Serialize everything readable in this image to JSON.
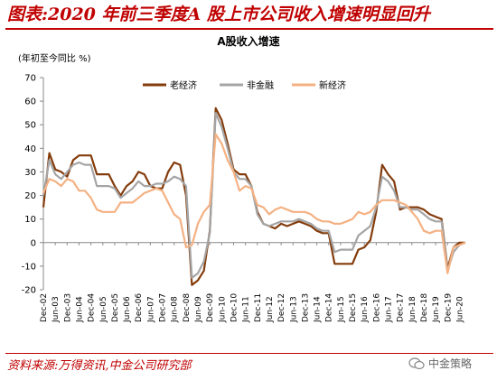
{
  "figure": {
    "title": "图表:2020 年前三季度A 股上市公司收入增速明显回升",
    "source": "资料来源:万得资讯,中金公司研究部",
    "watermark": "中金策略"
  },
  "chart_data": {
    "type": "line",
    "title": "A股收入增速",
    "ylabel": "(年初至今同比 %)",
    "ylim": [
      -20,
      70
    ],
    "yticks": [
      -20,
      -10,
      0,
      10,
      20,
      30,
      40,
      50,
      60,
      70
    ],
    "grid": false,
    "legend_position": "top-center",
    "x_tick_labels": [
      "Dec-02",
      "Jun-03",
      "Dec-03",
      "Jun-04",
      "Dec-04",
      "Jun-05",
      "Dec-05",
      "Jun-06",
      "Dec-06",
      "Jun-07",
      "Dec-07",
      "Jun-08",
      "Dec-08",
      "Jun-09",
      "Dec-09",
      "Jun-10",
      "Dec-10",
      "Jun-11",
      "Dec-11",
      "Jun-12",
      "Dec-12",
      "Jun-13",
      "Dec-13",
      "Jun-14",
      "Dec-14",
      "Jun-15",
      "Dec-15",
      "Jun-16",
      "Dec-16",
      "Jun-17",
      "Dec-17",
      "Jun-18",
      "Dec-18",
      "Jun-19",
      "Dec-19",
      "Jun-20"
    ],
    "x": [
      "Dec-02",
      "Mar-03",
      "Jun-03",
      "Sep-03",
      "Dec-03",
      "Mar-04",
      "Jun-04",
      "Sep-04",
      "Dec-04",
      "Mar-05",
      "Jun-05",
      "Sep-05",
      "Dec-05",
      "Mar-06",
      "Jun-06",
      "Sep-06",
      "Dec-06",
      "Mar-07",
      "Jun-07",
      "Sep-07",
      "Dec-07",
      "Mar-08",
      "Jun-08",
      "Sep-08",
      "Dec-08",
      "Mar-09",
      "Jun-09",
      "Sep-09",
      "Dec-09",
      "Mar-10",
      "Jun-10",
      "Sep-10",
      "Dec-10",
      "Mar-11",
      "Jun-11",
      "Sep-11",
      "Dec-11",
      "Mar-12",
      "Jun-12",
      "Sep-12",
      "Dec-12",
      "Mar-13",
      "Jun-13",
      "Sep-13",
      "Dec-13",
      "Mar-14",
      "Jun-14",
      "Sep-14",
      "Dec-14",
      "Mar-15",
      "Jun-15",
      "Sep-15",
      "Dec-15",
      "Mar-16",
      "Jun-16",
      "Sep-16",
      "Dec-16",
      "Mar-17",
      "Jun-17",
      "Sep-17",
      "Dec-17",
      "Mar-18",
      "Jun-18",
      "Sep-18",
      "Dec-18",
      "Mar-19",
      "Jun-19",
      "Sep-19",
      "Dec-19",
      "Mar-20",
      "Jun-20",
      "Sep-20"
    ],
    "series": [
      {
        "name": "老经济",
        "color": "#843c0c",
        "values": [
          15,
          38,
          31,
          30,
          28,
          35,
          37,
          37,
          37,
          29,
          29,
          29,
          24,
          20,
          24,
          26,
          30,
          29,
          24,
          23,
          23,
          30,
          34,
          33,
          20,
          -18,
          -16,
          -12,
          5,
          57,
          52,
          42,
          31,
          29,
          29,
          24,
          13,
          8,
          7,
          6,
          8,
          7,
          8,
          9,
          8,
          7,
          5,
          4,
          4,
          -9,
          -9,
          -9,
          -9,
          -3,
          -2,
          1,
          13,
          33,
          29,
          26,
          14,
          15,
          15,
          15,
          14,
          12,
          11,
          10,
          -11,
          -2,
          0,
          0
        ]
      },
      {
        "name": "非金融",
        "color": "#a5a5a5",
        "values": [
          20,
          35,
          29,
          27,
          30,
          33,
          34,
          33,
          33,
          24,
          24,
          24,
          23,
          19,
          21,
          23,
          26,
          24,
          24,
          25,
          25,
          26,
          28,
          27,
          24,
          -15,
          -13,
          -8,
          4,
          55,
          49,
          40,
          30,
          27,
          27,
          24,
          12,
          8,
          7,
          8,
          9,
          9,
          9,
          10,
          9,
          8,
          6,
          5,
          5,
          -4,
          -3,
          -3,
          -3,
          3,
          5,
          7,
          15,
          28,
          26,
          22,
          15,
          15,
          14,
          14,
          12,
          10,
          9,
          9,
          -12,
          -4,
          -1,
          0
        ]
      },
      {
        "name": "新经济",
        "color": "#f4b183",
        "values": [
          21,
          27,
          26,
          24,
          27,
          26,
          22,
          22,
          19,
          14,
          13,
          13,
          13,
          17,
          17,
          17,
          19,
          21,
          22,
          23,
          22,
          17,
          12,
          10,
          -2,
          -1,
          8,
          13,
          16,
          46,
          42,
          35,
          30,
          22,
          24,
          23,
          16,
          15,
          12,
          14,
          15,
          14,
          13,
          13,
          13,
          12,
          10,
          9,
          9,
          8,
          8,
          9,
          10,
          13,
          12,
          13,
          16,
          18,
          18,
          18,
          17,
          16,
          13,
          10,
          5,
          4,
          5,
          5,
          -13,
          -2,
          -1,
          0
        ]
      }
    ]
  }
}
